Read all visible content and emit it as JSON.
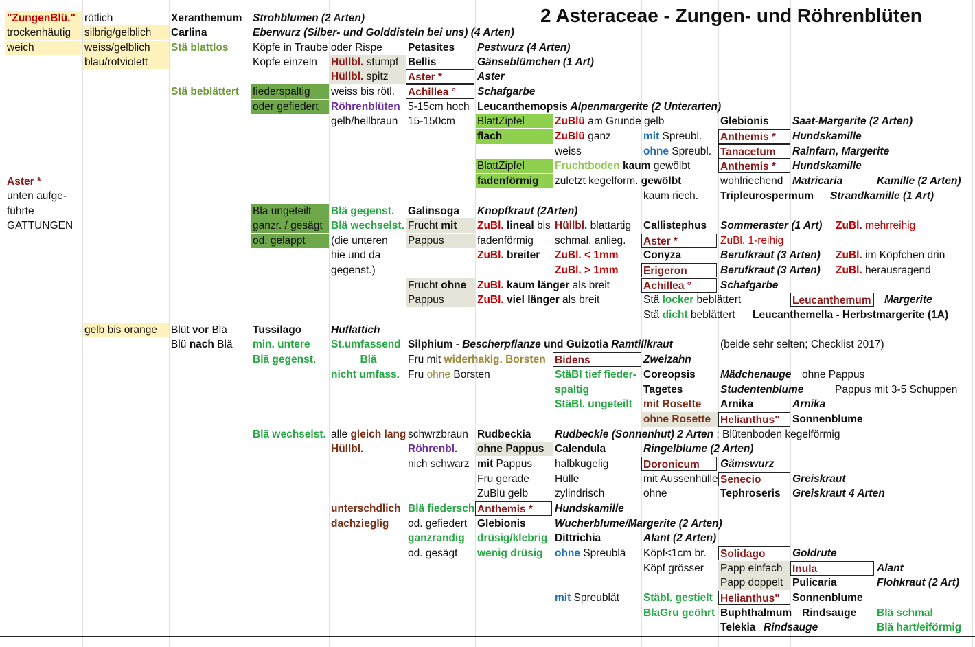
{
  "title": "2 Asteraceae -  Zungen- und Röhrenblüten",
  "r1": {
    "a": "\"ZungenBlü.\"",
    "b": "rötlich",
    "c": "Xeranthemum",
    "d": "Strohblumen (2 Arten)"
  },
  "r2": {
    "a": "trockenhäutig",
    "b": "silbrig/gelblich",
    "c": "Carlina",
    "d": "Eberwurz (Silber- und Golddisteln bei uns) (4 Arten)"
  },
  "r3": {
    "a": "weich",
    "b": "weiss/gelblich",
    "c": "Stä blattlos",
    "d": "Köpfe in Traube oder Rispe",
    "e": "Petasites",
    "f": "Pestwurz (4 Arten)"
  },
  "r4": {
    "b": "blau/rotviolett",
    "d": "Köpfe einzeln",
    "e1": "Hüllbl.",
    "e2": " stumpf",
    "f": "Bellis",
    "g": "Gänseblümchen (1 Art)"
  },
  "r5": {
    "e1": "Hüllbl.",
    "e2": " spitz",
    "f": "Aster *",
    "g": "Aster"
  },
  "r6": {
    "c": "Stä beblättert",
    "d": "fiederspaltig",
    "e": "weiss bis rötl.",
    "f": "Achillea °",
    "g": "Schafgarbe"
  },
  "r7": {
    "d": "oder gefiedert",
    "e": "Röhrenblüten",
    "f": "5-15cm hoch",
    "g1": "Leucanthemopsis",
    "g2": " Alpenmargerite (2 Unterarten)"
  },
  "r8": {
    "e": "gelb/hellbraun",
    "f": "15-150cm",
    "g": "BlattZipfel",
    "h1": "ZuBlü",
    "h2": " am Grunde gelb",
    "j": "Glebionis",
    "k": "Saat-Margerite (2 Arten)"
  },
  "r9": {
    "g": "flach",
    "h1": "ZuBlü",
    "h2": " ganz",
    "i1": "mit",
    "i2": " Spreubl.",
    "j": "Anthemis *",
    "k": "Hundskamille"
  },
  "r10": {
    "h": "weiss",
    "i1": "ohne",
    "i2": " Spreubl.",
    "j": "Tanacetum",
    "k": "Rainfarn, Margerite"
  },
  "r11": {
    "g": "BlattZipfel",
    "h1": "Fruchtboden",
    "h2": " kaum",
    "h3": " gewölbt",
    "j": "Anthemis *",
    "k": "Hundskamille"
  },
  "r12": {
    "a": "Aster *",
    "g": "fadenförmig",
    "h1": "zuletzt kegelförm.",
    "h2": " gewölbt",
    "j": "wohlriechend",
    "k": "Matricaria",
    "l": "Kamille (2 Arten)"
  },
  "r13": {
    "a": "unten aufge-",
    "i": "kaum riech.",
    "j": "Tripleurospermum",
    "k": "Strandkamille (1 Art)"
  },
  "r14": {
    "a": "führte",
    "d": "Blä ungeteilt",
    "e": "Blä gegenst.",
    "f": "Galinsoga",
    "g": "Knopfkraut (2Arten)"
  },
  "r15": {
    "a": "GATTUNGEN",
    "d": "ganzr. / gesägt",
    "e": "Blä wechselst.",
    "f1": "Frucht",
    "f2": " mit",
    "g1": "ZuBl.",
    "g2": " lineal",
    "g3": " bis",
    "h1": "Hüllbl.",
    "h2": " blattartig",
    "i": "Callistephus",
    "j": "Sommeraster (1 Art)",
    "k1": "ZuBl.",
    "k2": " mehrreihig"
  },
  "r16": {
    "d": "od. gelappt",
    "e": "(die unteren",
    "f": "Pappus",
    "g": "fadenförmig",
    "h": "schmal, anlieg.",
    "i": "Aster *",
    "j": "ZuBl. 1-reihig"
  },
  "r17": {
    "e": "hie und da",
    "g1": "ZuBl.",
    "g2": " breiter",
    "h": "ZuBl. < 1mm",
    "i": "Conyza",
    "j": "Berufkraut (3 Arten)",
    "k1": "ZuBl.",
    "k2": " im Köpfchen drin"
  },
  "r18": {
    "e": "gegenst.)",
    "h": "ZuBl. > 1mm",
    "i": "Erigeron",
    "j": "Berufkraut (3 Arten)",
    "k1": "ZuBl.",
    "k2": " herausragend"
  },
  "r19": {
    "f1": "Frucht",
    "f2": " ohne",
    "g1": "ZuBl.",
    "g2": " kaum länger",
    "g3": " als breit",
    "i": "Achillea °",
    "j": "Schafgarbe"
  },
  "r20": {
    "f": "Pappus",
    "g1": "ZuBl.",
    "g2": " viel länger",
    "g3": " als breit",
    "i1": "Stä ",
    "i2": "locker",
    "i3": " beblättert",
    "k": "Leucanthemum",
    "l": "Margerite"
  },
  "r21": {
    "i1": "Stä ",
    "i2": "dicht",
    "i3": " beblättert",
    "k": "Leucanthemella - Herbstmargerite (1A)"
  },
  "r22": {
    "b": "gelb bis orange",
    "c1": "Blüt ",
    "c2": "vor",
    "c3": " Blä",
    "d": "Tussilago",
    "e": "Huflattich"
  },
  "r23": {
    "c1": "Blü ",
    "c2": "nach",
    "c3": " Blä",
    "d": "min. untere",
    "e": "St.umfassend",
    "f1": "Silphium - ",
    "f2": "Bescherpflanze",
    "f3": "  und Guizotia ",
    "f4": "Ramtillkraut",
    "j": "(beide sehr selten; Checklist 2017)"
  },
  "r24": {
    "d": "Blä gegenst.",
    "e": "Blä",
    "f1": "Fru mit ",
    "f2": "widerhakig. Borsten",
    "h": "Bidens",
    "i": "Zweizahn"
  },
  "r25": {
    "e": "nicht umfass.",
    "f1": "Fru ",
    "f2": "ohne",
    "f3": " Borsten",
    "h": "StäBl tief fieder-",
    "i": "Coreopsis",
    "j": "Mädchenauge",
    "k": " ohne Pappus"
  },
  "r26": {
    "h": "spaltig",
    "i": "Tagetes",
    "j": "Studentenblume",
    "k": "Pappus mit 3-5 Schuppen"
  },
  "r27": {
    "h": "StäBl. ungeteilt",
    "i": "mit Rosette",
    "j": "Arnika",
    "k": "Arnika"
  },
  "r28": {
    "i": "ohne Rosette",
    "j": "Helianthus\"",
    "k": "Sonnenblume"
  },
  "r29": {
    "d": "Blä wechselst.",
    "e1": "alle ",
    "e2": "gleich lang",
    "f": "schwrzbraun",
    "g": "Rudbeckia",
    "h": "Rudbeckie  (Sonnenhut) 2 Arten",
    "h2": " ; Blütenboden kegelförmig"
  },
  "r30": {
    "e": "Hüllbl.",
    "f": "Röhrenbl.",
    "g": "ohne Pappus",
    "h": "Calendula",
    "i": "Ringelblume (2 Arten)"
  },
  "r31": {
    "f": "nich schwarz",
    "g1": "mit",
    "g2": " Pappus",
    "h": "halbkugelig",
    "i": "Doronicum",
    "j": "Gämswurz"
  },
  "r32": {
    "g": "Fru gerade",
    "h": "Hülle",
    "i": "mit Aussenhülle",
    "j": "Senecio",
    "k": "Greiskraut"
  },
  "r33": {
    "g": "ZuBlü gelb",
    "h": "zylindrisch",
    "i": "ohne",
    "j": "Tephroseris",
    "k": "Greiskraut  4 Arten"
  },
  "r34": {
    "e": "unterschdlich",
    "f": "Blä fiederschn.",
    "g": "Anthemis *",
    "h": "Hundskamille"
  },
  "r35": {
    "e": "dachzieglig",
    "f": "od. gefiedert",
    "g": "Glebionis",
    "h": "Wucherblume/Margerite (2 Arten)"
  },
  "r36": {
    "f": "ganzrandig",
    "g": "drüsig/klebrig",
    "h": "Dittrichia",
    "i": "Alant (2 Arten)"
  },
  "r37": {
    "f": "od. gesägt",
    "g": "wenig drüsig",
    "h1": "ohne",
    "h2": " Spreublä",
    "i": "Köpf<1cm br.",
    "j": "Solidago",
    "k": "Goldrute"
  },
  "r38": {
    "i": "Köpf grösser",
    "j": "Papp einfach",
    "k": "Inula",
    "l": "Alant"
  },
  "r39": {
    "j": "Papp doppelt",
    "k": "Pulicaria",
    "l": "Flohkraut (2 Art)"
  },
  "r40": {
    "h1": "mit",
    "h2": " Spreublät",
    "i": "Stäbl. gestielt",
    "j": "Helianthus\"",
    "k": "Sonnenblume"
  },
  "r41": {
    "i": "BlaGru geöhrt",
    "j": "Buphthalmum",
    "k": "Rindsauge",
    "l": "Blä schmal"
  },
  "r42": {
    "j": "Telekia",
    "k": "Rindsauge",
    "l": "Blä hart/eiförmig"
  }
}
